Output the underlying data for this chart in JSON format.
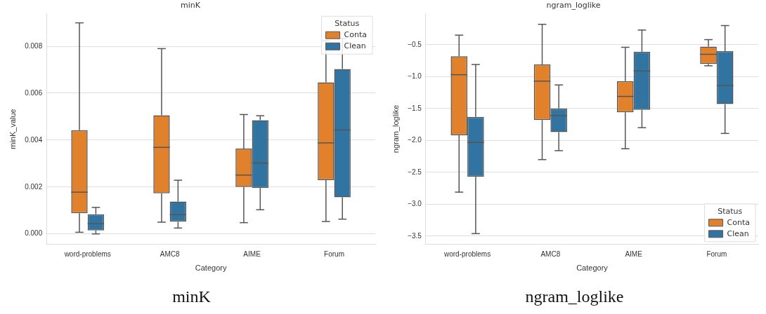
{
  "chart_data": [
    {
      "type": "box",
      "title": "minK",
      "xlabel": "Category",
      "ylabel": "minK_value",
      "legend_title": "Status",
      "legend": "top right",
      "grid": "y",
      "categories": [
        "word-problems",
        "AMC8",
        "AIME",
        "Forum"
      ],
      "ylim": [
        -0.00045,
        0.0094
      ],
      "yticks": [
        {
          "value": 0,
          "label": "0.000"
        },
        {
          "value": 0.002,
          "label": "0.002"
        },
        {
          "value": 0.004,
          "label": "0.004"
        },
        {
          "value": 0.006,
          "label": "0.006"
        },
        {
          "value": 0.008,
          "label": "0.008"
        }
      ],
      "series": [
        {
          "name": "Conta",
          "color": "#e1812c",
          "boxes": [
            {
              "low": 7e-05,
              "q1": 0.00088,
              "median": 0.00178,
              "q3": 0.00442,
              "high": 0.009
            },
            {
              "low": 0.0005,
              "q1": 0.00173,
              "median": 0.00369,
              "q3": 0.00506,
              "high": 0.0079
            },
            {
              "low": 0.00048,
              "q1": 0.002,
              "median": 0.00251,
              "q3": 0.00364,
              "high": 0.00509
            },
            {
              "low": 0.00053,
              "q1": 0.00229,
              "median": 0.00388,
              "q3": 0.00646,
              "high": 0.00824
            }
          ]
        },
        {
          "name": "Clean",
          "color": "#3274a1",
          "boxes": [
            {
              "low": 0,
              "q1": 0.00015,
              "median": 0.00044,
              "q3": 0.00084,
              "high": 0.00113
            },
            {
              "low": 0.00025,
              "q1": 0.00052,
              "median": 0.00082,
              "q3": 0.00138,
              "high": 0.00229
            },
            {
              "low": 0.00103,
              "q1": 0.00196,
              "median": 0.00302,
              "q3": 0.00485,
              "high": 0.00504
            },
            {
              "low": 0.00063,
              "q1": 0.00156,
              "median": 0.00443,
              "q3": 0.00703,
              "high": 0.00834
            }
          ]
        }
      ],
      "annotations": [
        "minK"
      ]
    },
    {
      "type": "box",
      "title": "ngram_loglike",
      "xlabel": "Category",
      "ylabel": "ngram_loglike",
      "legend_title": "Status",
      "legend": "bottom right",
      "grid": "y",
      "categories": [
        "word-problems",
        "AMC8",
        "AIME",
        "Forum"
      ],
      "ylim": [
        -3.63,
        -0.01
      ],
      "yticks": [
        {
          "value": -3.5,
          "label": "−3.5"
        },
        {
          "value": -3,
          "label": "−3.0"
        },
        {
          "value": -2.5,
          "label": "−2.5"
        },
        {
          "value": -2,
          "label": "−2.0"
        },
        {
          "value": -1.5,
          "label": "−1.5"
        },
        {
          "value": -1,
          "label": "−1.0"
        },
        {
          "value": -0.5,
          "label": "−0.5"
        }
      ],
      "series": [
        {
          "name": "Conta",
          "color": "#e1812c",
          "boxes": [
            {
              "low": -2.81,
              "q1": -1.92,
              "median": -0.97,
              "q3": -0.68,
              "high": -0.35
            },
            {
              "low": -2.3,
              "q1": -1.68,
              "median": -1.07,
              "q3": -0.81,
              "high": -0.18
            },
            {
              "low": -2.13,
              "q1": -1.56,
              "median": -1.31,
              "q3": -1.07,
              "high": -0.54
            },
            {
              "low": -0.83,
              "q1": -0.8,
              "median": -0.65,
              "q3": -0.53,
              "high": -0.42
            }
          ]
        },
        {
          "name": "Clean",
          "color": "#3274a1",
          "boxes": [
            {
              "low": -3.46,
              "q1": -2.57,
              "median": -2.03,
              "q3": -1.63,
              "high": -0.81
            },
            {
              "low": -2.16,
              "q1": -1.87,
              "median": -1.61,
              "q3": -1.5,
              "high": -1.13
            },
            {
              "low": -1.8,
              "q1": -1.52,
              "median": -0.91,
              "q3": -0.61,
              "high": -0.27
            },
            {
              "low": -1.89,
              "q1": -1.43,
              "median": -1.14,
              "q3": -0.6,
              "high": -0.2
            }
          ]
        }
      ],
      "annotations": [
        "ngram_loglike"
      ]
    }
  ]
}
